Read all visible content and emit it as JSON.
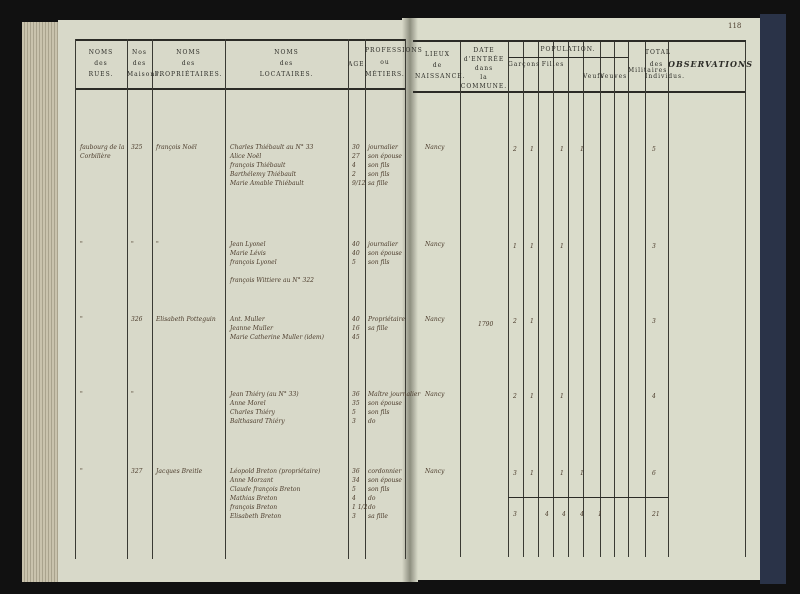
{
  "page_number": "118",
  "headers_left": {
    "rues": [
      "NOMS",
      "des",
      "RUES."
    ],
    "maisons": [
      "Nos",
      "des",
      "Maisons."
    ],
    "proprietaires": [
      "NOMS",
      "des",
      "PROPRIÉTAIRES."
    ],
    "locataires": [
      "NOMS",
      "des",
      "LOCATAIRES."
    ],
    "age": "AGE.",
    "professions": [
      "PROFESSIONS",
      "ou",
      "MÉTIERS."
    ]
  },
  "headers_right": {
    "lieux": [
      "LIEUX",
      "de",
      "NAISSANCE."
    ],
    "date": [
      "DATE",
      "d'ENTRÉE",
      "dans",
      "la COMMUNE."
    ],
    "population": "POPULATION.",
    "garcons": "Garçons",
    "filles": "Filles",
    "veufs": "Veufs",
    "veuves": "Veuves",
    "militaires": "Militaires",
    "total": [
      "TOTAL",
      "des",
      "Individus."
    ],
    "observations": "OBSERVATIONS"
  },
  "entries": [
    {
      "rue": "faubourg de la Corbillère",
      "no": "325",
      "proprietaire": "françois Noël",
      "locataires": [
        "Charles Thiébault  au N° 33",
        "Alice Noël",
        "françois Thiébault",
        "Barthélemy Thiébault",
        "Marie Amable Thiébault"
      ],
      "ages": [
        "30",
        "27",
        "4",
        "2",
        "9/12"
      ],
      "professions": [
        "journalier",
        "son épouse",
        "son fils",
        "son fils",
        "sa fille"
      ],
      "lieu": "Nancy",
      "date": "",
      "population": [
        "2",
        "1",
        "1",
        "1"
      ],
      "total": "5"
    },
    {
      "rue": "\"",
      "no": "\"",
      "proprietaire": "\"",
      "locataires": [
        "Jean Lyonel",
        "Marie Lévis",
        "françois Lyonel",
        "",
        "françois Wittiere  au N° 322"
      ],
      "ages": [
        "40",
        "40",
        "5"
      ],
      "professions": [
        "journalier",
        "son épouse",
        "son fils"
      ],
      "lieu": "Nancy",
      "date": "",
      "population": [
        "1",
        "1",
        "1"
      ],
      "total": "3"
    },
    {
      "rue": "\"",
      "no": "326",
      "proprietaire": "Elisabeth Potteguin",
      "locataires": [
        "Ant. Muller",
        "Jeanne Muller",
        "Marie Catherine Muller (idem)"
      ],
      "ages": [
        "40",
        "16",
        "45"
      ],
      "professions": [
        "Propriétaire",
        "sa fille",
        ""
      ],
      "lieu": "Nancy",
      "date": "1790",
      "population": [
        "2",
        "1"
      ],
      "total": "3"
    },
    {
      "rue": "\"",
      "no": "\"",
      "proprietaire": "",
      "locataires": [
        "Jean Thiéry (au N° 33)",
        "Anne Morel",
        "Charles Thiéry",
        "Balthasard Thiéry"
      ],
      "ages": [
        "36",
        "35",
        "5",
        "3"
      ],
      "professions": [
        "Maître journalier",
        "son épouse",
        "son fils",
        "do"
      ],
      "lieu": "Nancy",
      "date": "",
      "population": [
        "2",
        "1",
        "1"
      ],
      "total": "4"
    },
    {
      "rue": "\"",
      "no": "327",
      "proprietaire": "Jacques Breitle",
      "locataires": [
        "Léopold Breton (propriétaire)",
        "Anne Morzant",
        "Claude françois Breton",
        "Mathias Breton",
        "françois Breton",
        "Elisabeth Breton"
      ],
      "ages": [
        "36",
        "34",
        "5",
        "4",
        "1 1/2",
        "3"
      ],
      "professions": [
        "cordonnier",
        "son épouse",
        "son fils",
        "do",
        "do",
        "sa fille"
      ],
      "lieu": "Nancy",
      "date": "",
      "population": [
        "3",
        "1",
        "1",
        "1"
      ],
      "total": "6"
    }
  ],
  "totals": {
    "population": [
      "3",
      "4",
      "4",
      "4",
      "1"
    ],
    "total": "21"
  }
}
